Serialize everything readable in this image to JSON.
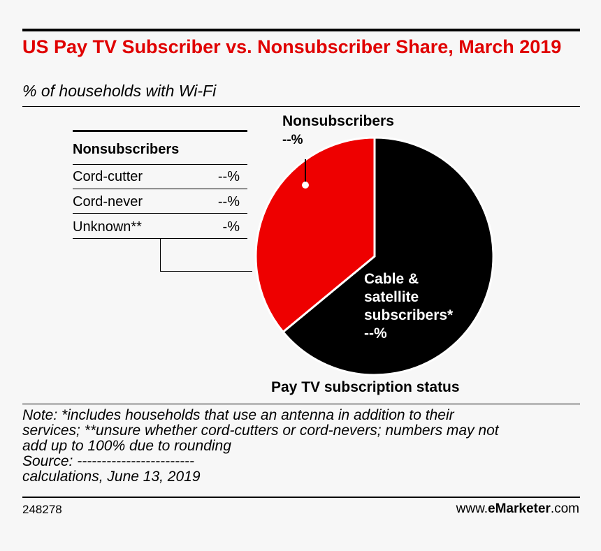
{
  "header": {
    "title": "US Pay TV Subscriber vs. Nonsubscriber Share, March 2019",
    "subtitle": "% of households with Wi-Fi"
  },
  "legend": {
    "heading": "Nonsubscribers",
    "rows": [
      {
        "label": "Cord-cutter",
        "value": "--%"
      },
      {
        "label": "Cord-never",
        "value": "--%"
      },
      {
        "label": "Unknown**",
        "value": "-%"
      }
    ]
  },
  "chart_data": {
    "type": "pie",
    "title": "US Pay TV Subscriber vs. Nonsubscriber Share, March 2019",
    "subtitle": "% of households with Wi-Fi",
    "xlabel": "Pay TV subscription status",
    "slices": [
      {
        "name": "Nonsubscribers",
        "label": "--%",
        "share": 0.36,
        "color": "#ee0000"
      },
      {
        "name": "Cable & satellite subscribers*",
        "label": "--%",
        "share": 0.64,
        "color": "#000000"
      }
    ],
    "annotations": {
      "nonsubscribers_name": "Nonsubscribers",
      "nonsubscribers_value": "--%",
      "subscribers_lines": [
        "Cable &",
        "satellite",
        "subscribers*",
        "--%"
      ]
    }
  },
  "notes": {
    "lines": [
      "Note: *includes households that use an antenna in addition to their",
      "services; **unsure whether cord-cutters or cord-nevers; numbers may not",
      "add up to 100% due to rounding",
      "Source: ------------------------",
      "calculations, June 13, 2019"
    ]
  },
  "footer": {
    "chart_id": "248278",
    "brand_prefix": "www.",
    "brand_bold": "eMarketer",
    "brand_suffix": ".com"
  },
  "colors": {
    "title": "#e00000",
    "nonsubscribers": "#ee0000",
    "subscribers": "#000000"
  }
}
